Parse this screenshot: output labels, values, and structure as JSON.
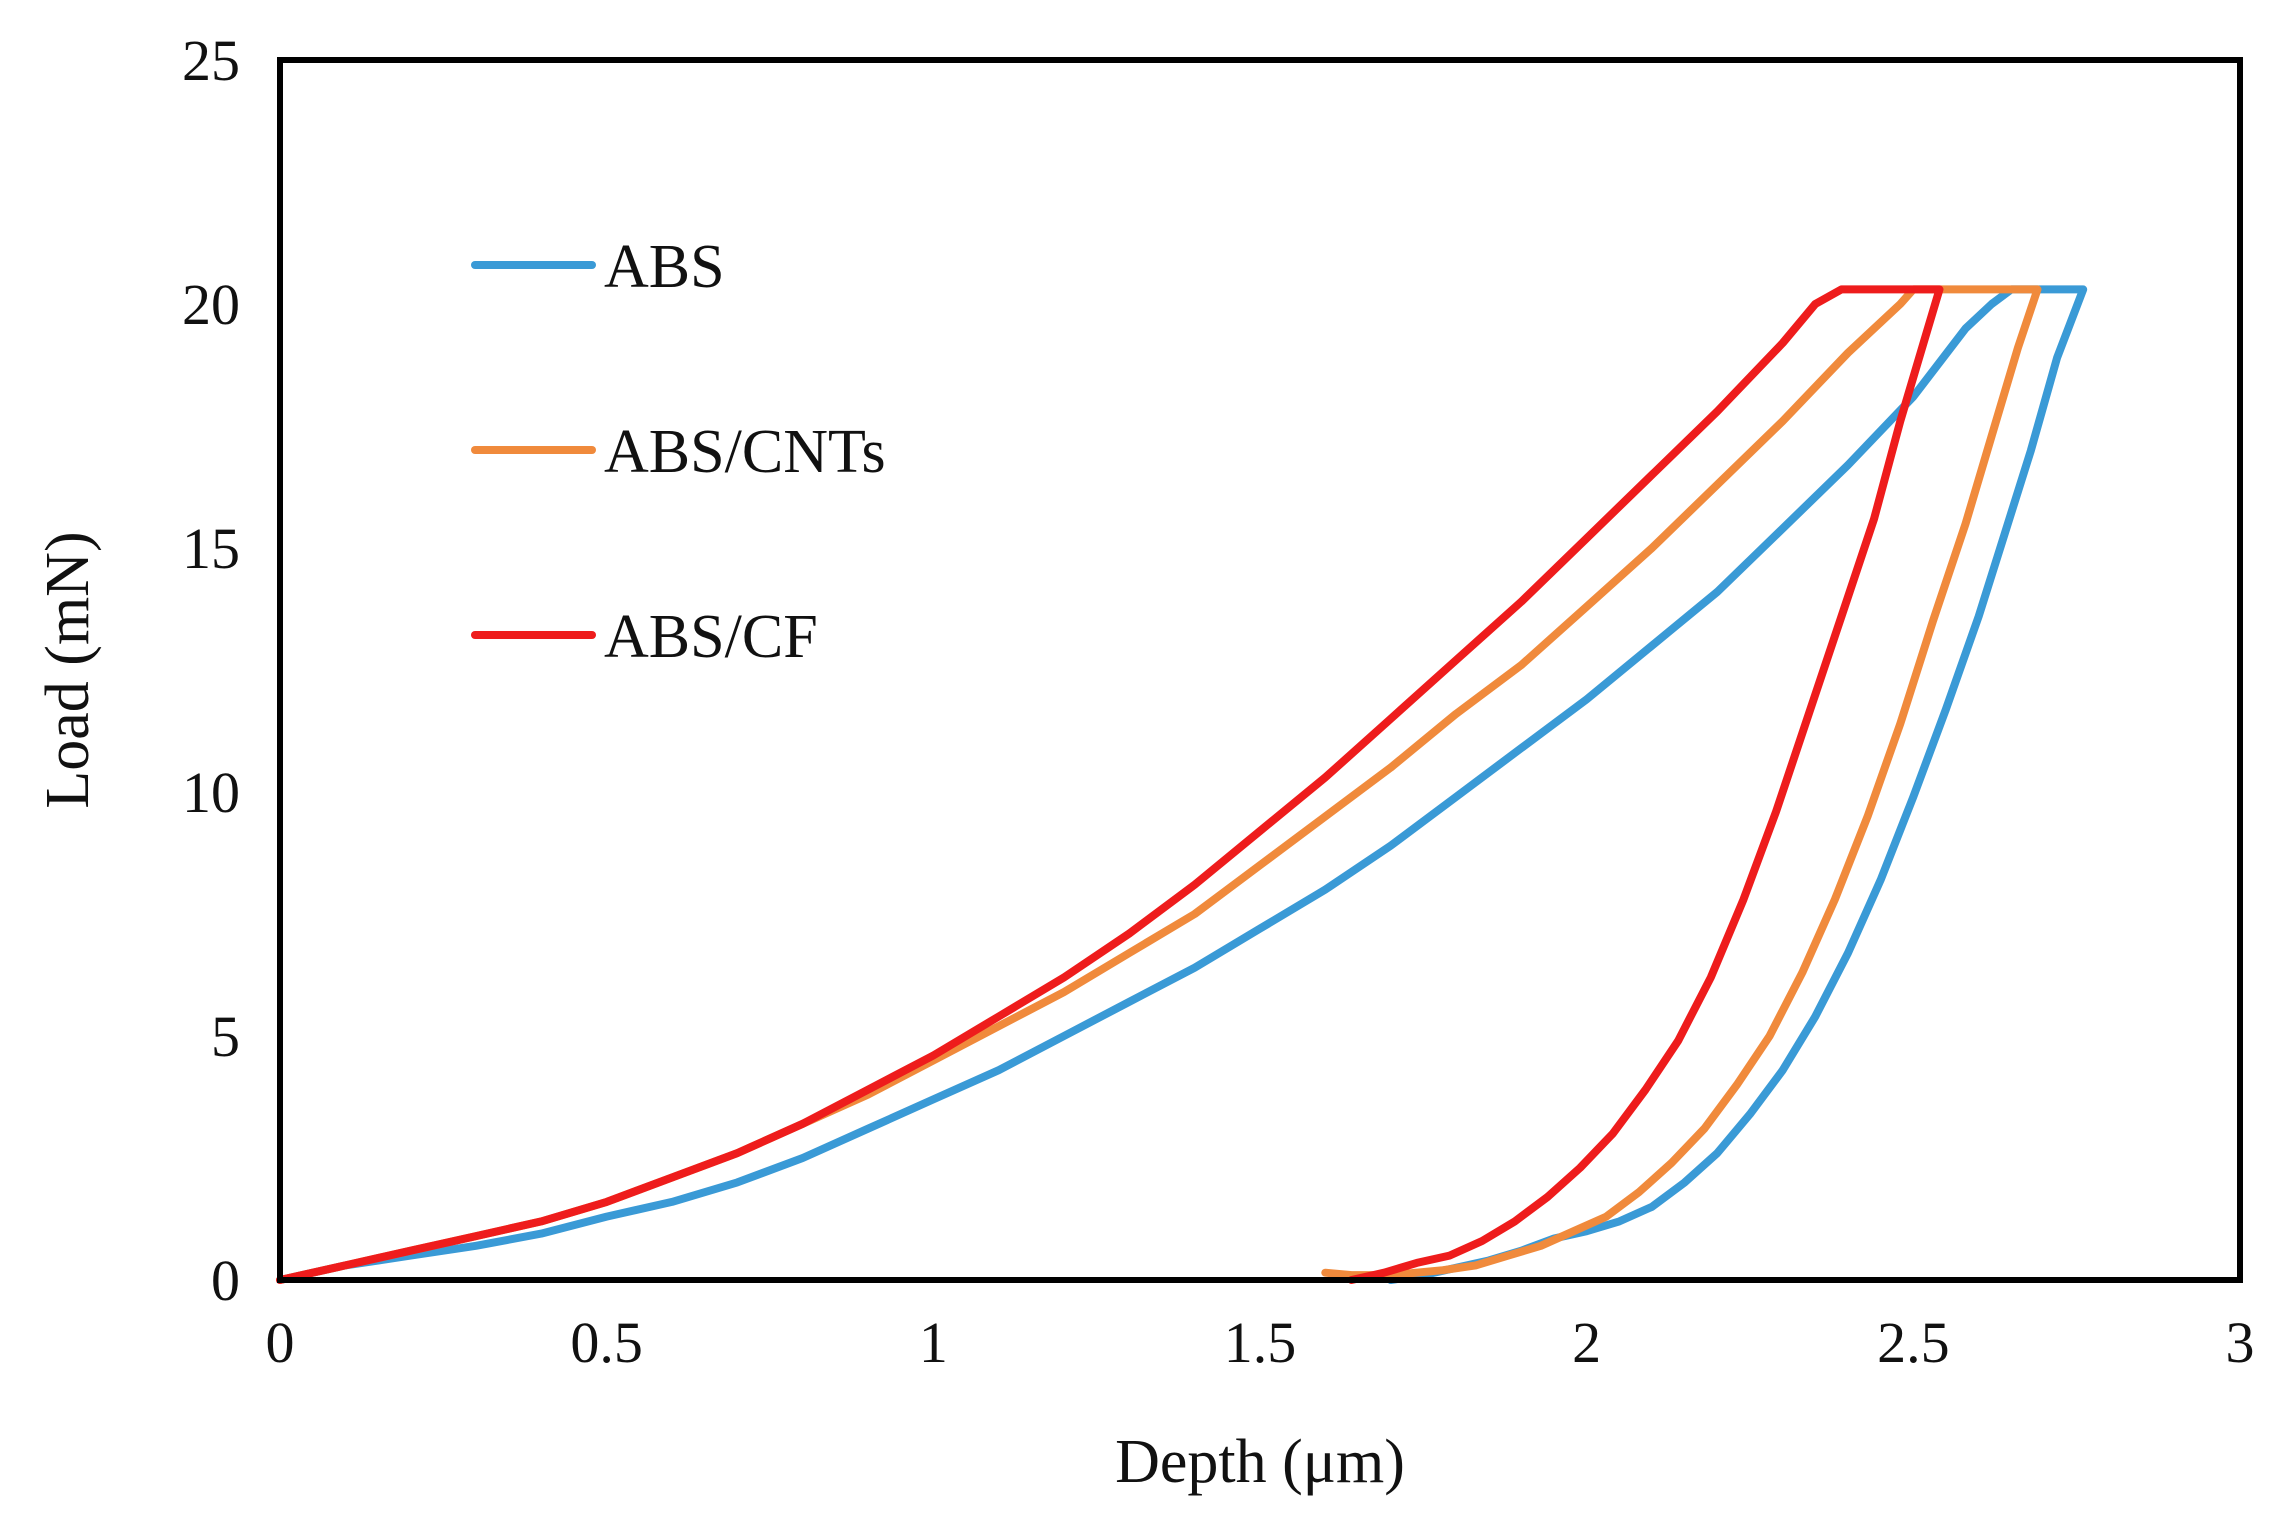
{
  "chart_data": {
    "type": "line",
    "title": "",
    "xlabel": "Depth (μm)",
    "ylabel": "Load (mN)",
    "xlim": [
      0,
      3
    ],
    "ylim": [
      0,
      25
    ],
    "x_ticks": [
      0,
      0.5,
      1,
      1.5,
      2,
      2.5,
      3
    ],
    "y_ticks": [
      0,
      5,
      10,
      15,
      20,
      25
    ],
    "x_tick_labels": [
      "0",
      "0.5",
      "1",
      "1.5",
      "2",
      "2.5",
      "3"
    ],
    "y_tick_labels": [
      "0",
      "5",
      "10",
      "15",
      "20",
      "25"
    ],
    "grid": false,
    "legend_position": "top-left",
    "series": [
      {
        "name": "ABS",
        "color": "#3a9ad6",
        "points": [
          [
            0,
            0
          ],
          [
            0.1,
            0.3
          ],
          [
            0.2,
            0.5
          ],
          [
            0.3,
            0.7
          ],
          [
            0.4,
            0.95
          ],
          [
            0.5,
            1.3
          ],
          [
            0.6,
            1.6
          ],
          [
            0.7,
            2.0
          ],
          [
            0.8,
            2.5
          ],
          [
            0.9,
            3.1
          ],
          [
            1.0,
            3.7
          ],
          [
            1.1,
            4.3
          ],
          [
            1.2,
            5.0
          ],
          [
            1.3,
            5.7
          ],
          [
            1.4,
            6.4
          ],
          [
            1.5,
            7.2
          ],
          [
            1.6,
            8.0
          ],
          [
            1.7,
            8.9
          ],
          [
            1.8,
            9.9
          ],
          [
            1.9,
            10.9
          ],
          [
            2.0,
            11.9
          ],
          [
            2.1,
            13.0
          ],
          [
            2.2,
            14.1
          ],
          [
            2.3,
            15.4
          ],
          [
            2.4,
            16.7
          ],
          [
            2.5,
            18.1
          ],
          [
            2.58,
            19.5
          ],
          [
            2.62,
            20.0
          ],
          [
            2.65,
            20.3
          ],
          [
            2.76,
            20.3
          ],
          [
            2.72,
            18.9
          ],
          [
            2.68,
            17.0
          ],
          [
            2.64,
            15.3
          ],
          [
            2.6,
            13.6
          ],
          [
            2.55,
            11.7
          ],
          [
            2.5,
            9.9
          ],
          [
            2.45,
            8.2
          ],
          [
            2.4,
            6.7
          ],
          [
            2.35,
            5.4
          ],
          [
            2.3,
            4.3
          ],
          [
            2.25,
            3.4
          ],
          [
            2.2,
            2.6
          ],
          [
            2.15,
            2.0
          ],
          [
            2.1,
            1.5
          ],
          [
            2.05,
            1.2
          ],
          [
            2.0,
            1.0
          ],
          [
            1.95,
            0.85
          ],
          [
            1.9,
            0.6
          ],
          [
            1.85,
            0.4
          ],
          [
            1.8,
            0.25
          ],
          [
            1.75,
            0.1
          ],
          [
            1.7,
            0.0
          ]
        ]
      },
      {
        "name": "ABS/CNTs",
        "color": "#f08a3c",
        "points": [
          [
            0,
            0
          ],
          [
            0.1,
            0.3
          ],
          [
            0.2,
            0.6
          ],
          [
            0.3,
            0.9
          ],
          [
            0.4,
            1.2
          ],
          [
            0.5,
            1.6
          ],
          [
            0.6,
            2.1
          ],
          [
            0.7,
            2.6
          ],
          [
            0.8,
            3.2
          ],
          [
            0.9,
            3.8
          ],
          [
            1.0,
            4.5
          ],
          [
            1.1,
            5.2
          ],
          [
            1.2,
            5.9
          ],
          [
            1.3,
            6.7
          ],
          [
            1.4,
            7.5
          ],
          [
            1.5,
            8.5
          ],
          [
            1.6,
            9.5
          ],
          [
            1.7,
            10.5
          ],
          [
            1.8,
            11.6
          ],
          [
            1.9,
            12.6
          ],
          [
            2.0,
            13.8
          ],
          [
            2.1,
            15.0
          ],
          [
            2.2,
            16.3
          ],
          [
            2.3,
            17.6
          ],
          [
            2.4,
            19.0
          ],
          [
            2.48,
            20.0
          ],
          [
            2.5,
            20.3
          ],
          [
            2.69,
            20.3
          ],
          [
            2.66,
            19.1
          ],
          [
            2.62,
            17.3
          ],
          [
            2.58,
            15.5
          ],
          [
            2.53,
            13.5
          ],
          [
            2.48,
            11.4
          ],
          [
            2.43,
            9.5
          ],
          [
            2.38,
            7.8
          ],
          [
            2.33,
            6.3
          ],
          [
            2.28,
            5.0
          ],
          [
            2.23,
            4.0
          ],
          [
            2.18,
            3.1
          ],
          [
            2.13,
            2.4
          ],
          [
            2.08,
            1.8
          ],
          [
            2.03,
            1.3
          ],
          [
            1.98,
            1.0
          ],
          [
            1.93,
            0.7
          ],
          [
            1.88,
            0.5
          ],
          [
            1.83,
            0.3
          ],
          [
            1.78,
            0.2
          ],
          [
            1.7,
            0.1
          ],
          [
            1.64,
            0.1
          ],
          [
            1.6,
            0.15
          ]
        ]
      },
      {
        "name": "ABS/CF",
        "color": "#ee1c1c",
        "points": [
          [
            0,
            0
          ],
          [
            0.1,
            0.3
          ],
          [
            0.2,
            0.6
          ],
          [
            0.3,
            0.9
          ],
          [
            0.4,
            1.2
          ],
          [
            0.5,
            1.6
          ],
          [
            0.6,
            2.1
          ],
          [
            0.7,
            2.6
          ],
          [
            0.8,
            3.2
          ],
          [
            0.9,
            3.9
          ],
          [
            1.0,
            4.6
          ],
          [
            1.1,
            5.4
          ],
          [
            1.2,
            6.2
          ],
          [
            1.3,
            7.1
          ],
          [
            1.4,
            8.1
          ],
          [
            1.5,
            9.2
          ],
          [
            1.6,
            10.3
          ],
          [
            1.7,
            11.5
          ],
          [
            1.8,
            12.7
          ],
          [
            1.9,
            13.9
          ],
          [
            2.0,
            15.2
          ],
          [
            2.1,
            16.5
          ],
          [
            2.2,
            17.8
          ],
          [
            2.3,
            19.2
          ],
          [
            2.35,
            20.0
          ],
          [
            2.39,
            20.3
          ],
          [
            2.54,
            20.3
          ],
          [
            2.52,
            19.4
          ],
          [
            2.48,
            17.6
          ],
          [
            2.44,
            15.6
          ],
          [
            2.39,
            13.6
          ],
          [
            2.34,
            11.6
          ],
          [
            2.29,
            9.6
          ],
          [
            2.24,
            7.8
          ],
          [
            2.19,
            6.2
          ],
          [
            2.14,
            4.9
          ],
          [
            2.09,
            3.9
          ],
          [
            2.04,
            3.0
          ],
          [
            1.99,
            2.3
          ],
          [
            1.94,
            1.7
          ],
          [
            1.89,
            1.2
          ],
          [
            1.84,
            0.8
          ],
          [
            1.79,
            0.5
          ],
          [
            1.74,
            0.35
          ],
          [
            1.69,
            0.15
          ],
          [
            1.64,
            0.0
          ]
        ]
      }
    ]
  }
}
